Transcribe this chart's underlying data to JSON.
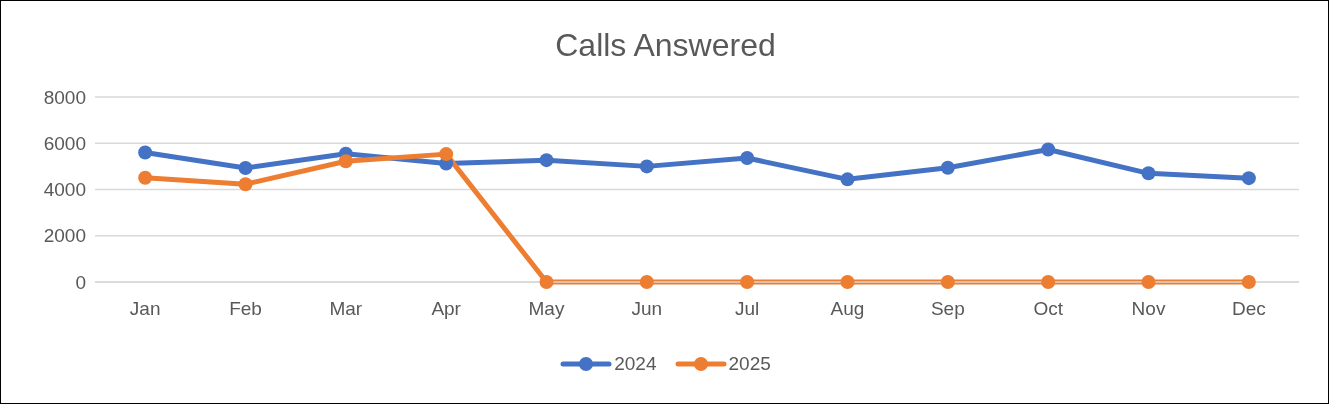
{
  "chart_data": {
    "type": "line",
    "title": "Calls Answered",
    "categories": [
      "Jan",
      "Feb",
      "Mar",
      "Apr",
      "May",
      "Jun",
      "Jul",
      "Aug",
      "Sep",
      "Oct",
      "Nov",
      "Dec"
    ],
    "series": [
      {
        "name": "2024",
        "color": "#4472c4",
        "values": [
          5600,
          4930,
          5550,
          5120,
          5270,
          5000,
          5360,
          4440,
          4940,
          5730,
          4700,
          4490
        ]
      },
      {
        "name": "2025",
        "color": "#ed7d31",
        "values": [
          4510,
          4230,
          5220,
          5530,
          0,
          0,
          0,
          0,
          0,
          0,
          0,
          0
        ]
      }
    ],
    "ylim": [
      0,
      8000
    ],
    "yticks": [
      0,
      2000,
      4000,
      6000,
      8000
    ],
    "grid": "y",
    "legend": "bottom",
    "marker": "circle",
    "line_style": "solid"
  }
}
